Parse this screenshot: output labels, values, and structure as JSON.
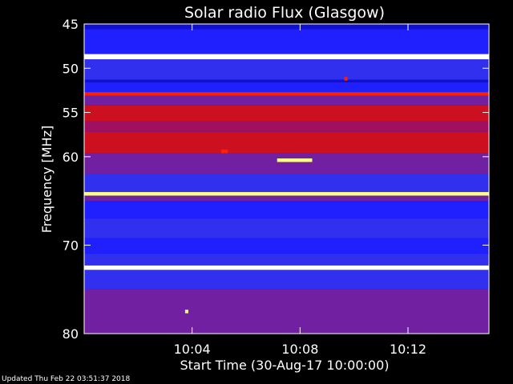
{
  "chart_data": {
    "type": "heatmap",
    "title": "Solar radio Flux (Glasgow)",
    "ylabel": "Frequency [MHz]",
    "xlabel": "Start Time (30-Aug-17 10:00:00)",
    "ylim": [
      45,
      80
    ],
    "y_ticks": [
      {
        "value": 45,
        "label": "45"
      },
      {
        "value": 50,
        "label": "50"
      },
      {
        "value": 55,
        "label": "55"
      },
      {
        "value": 60,
        "label": "60"
      },
      {
        "value": 70,
        "label": "70"
      },
      {
        "value": 80,
        "label": "80"
      }
    ],
    "xlim_minutes": [
      0,
      15
    ],
    "x_ticks": [
      {
        "value": 4,
        "label": "10:04"
      },
      {
        "value": 8,
        "label": "10:08"
      },
      {
        "value": 12,
        "label": "10:12"
      }
    ],
    "colormap": [
      "#000044",
      "#1010d0",
      "#2020ff",
      "#3030ee",
      "#7020a0",
      "#a01060",
      "#cc1020",
      "#ff2000",
      "#ff8800",
      "#ffff80",
      "#ffffff"
    ],
    "frequency_bands": [
      {
        "freq_min": 45.0,
        "freq_max": 45.6,
        "level": 1
      },
      {
        "freq_min": 45.6,
        "freq_max": 48.4,
        "level": 2
      },
      {
        "freq_min": 48.4,
        "freq_max": 49.0,
        "level": 10
      },
      {
        "freq_min": 49.0,
        "freq_max": 51.3,
        "level": 3
      },
      {
        "freq_min": 51.3,
        "freq_max": 51.6,
        "level": 1
      },
      {
        "freq_min": 51.6,
        "freq_max": 52.7,
        "level": 2
      },
      {
        "freq_min": 52.7,
        "freq_max": 53.1,
        "level": 7
      },
      {
        "freq_min": 53.1,
        "freq_max": 54.2,
        "level": 4
      },
      {
        "freq_min": 54.2,
        "freq_max": 56.0,
        "level": 6
      },
      {
        "freq_min": 56.0,
        "freq_max": 57.2,
        "level": 5
      },
      {
        "freq_min": 57.2,
        "freq_max": 59.6,
        "level": 6
      },
      {
        "freq_min": 59.6,
        "freq_max": 62.0,
        "level": 4
      },
      {
        "freq_min": 62.0,
        "freq_max": 64.0,
        "level": 3
      },
      {
        "freq_min": 64.0,
        "freq_max": 64.4,
        "level": 9
      },
      {
        "freq_min": 64.4,
        "freq_max": 65.0,
        "level": 4
      },
      {
        "freq_min": 65.0,
        "freq_max": 67.0,
        "level": 2
      },
      {
        "freq_min": 67.0,
        "freq_max": 69.2,
        "level": 3
      },
      {
        "freq_min": 69.2,
        "freq_max": 71.0,
        "level": 2
      },
      {
        "freq_min": 71.0,
        "freq_max": 72.3,
        "level": 3
      },
      {
        "freq_min": 72.3,
        "freq_max": 72.8,
        "level": 10
      },
      {
        "freq_min": 72.8,
        "freq_max": 75.0,
        "level": 3
      },
      {
        "freq_min": 75.0,
        "freq_max": 80.0,
        "level": 4
      }
    ],
    "bursts": [
      {
        "time_min": 7.8,
        "freq_min": 60.2,
        "freq_max": 60.6,
        "duration_min": 1.3,
        "level": 9
      },
      {
        "time_min": 5.2,
        "freq_min": 59.2,
        "freq_max": 59.6,
        "duration_min": 0.25,
        "level": 7
      },
      {
        "time_min": 9.7,
        "freq_min": 51.0,
        "freq_max": 51.4,
        "duration_min": 0.12,
        "level": 7
      },
      {
        "time_min": 3.8,
        "freq_min": 77.3,
        "freq_max": 77.7,
        "duration_min": 0.12,
        "level": 9
      }
    ]
  },
  "footer": {
    "updated_text": "Updated Thu Feb 22 03:51:37 2018"
  }
}
